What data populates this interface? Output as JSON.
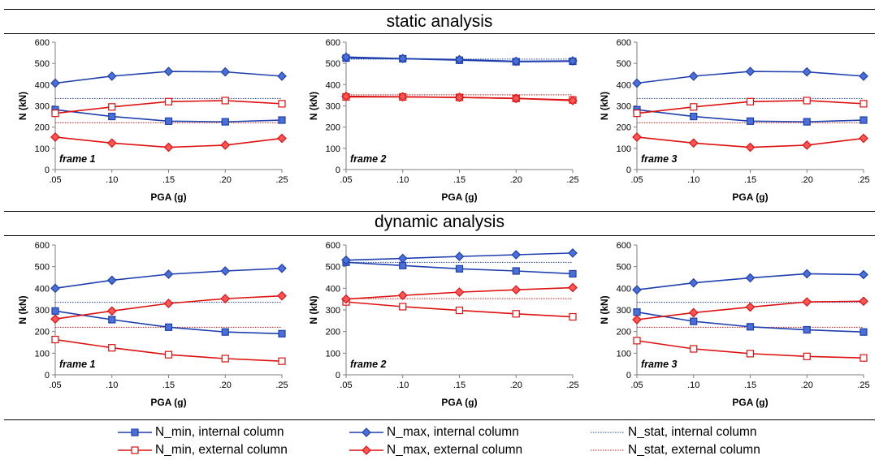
{
  "sections": [
    {
      "title": "static analysis"
    },
    {
      "title": "dynamic analysis"
    }
  ],
  "colors": {
    "internal": "#1f3fae",
    "internal_fill": "#4a70d8",
    "external": "#dd1111",
    "external_fill": "#ff5555"
  },
  "legend": [
    {
      "label": "N_min, internal column",
      "series": "N_min_internal"
    },
    {
      "label": "N_max, internal column",
      "series": "N_max_internal"
    },
    {
      "label": "N_stat, internal column",
      "series": "N_stat_internal"
    },
    {
      "label": "N_min, external column",
      "series": "N_min_external"
    },
    {
      "label": "N_max, external column",
      "series": "N_max_external"
    },
    {
      "label": "N_stat, external column",
      "series": "N_stat_external"
    }
  ],
  "chart_data": [
    {
      "type": "line",
      "section": "static analysis",
      "annotation": "frame 1",
      "xlabel": "PGA (g)",
      "ylabel": "N (kN)",
      "ylim": [
        0,
        600
      ],
      "yticks": [
        0,
        100,
        200,
        300,
        400,
        500,
        600
      ],
      "x": [
        ".05",
        ".10",
        ".15",
        ".20",
        ".25"
      ],
      "series": [
        {
          "name": "N_min, internal column",
          "key": "N_min_internal",
          "values": [
            282,
            250,
            228,
            225,
            233
          ]
        },
        {
          "name": "N_max, internal column",
          "key": "N_max_internal",
          "values": [
            407,
            440,
            462,
            460,
            440
          ]
        },
        {
          "name": "N_stat, internal column",
          "key": "N_stat_internal",
          "values": [
            335,
            335,
            335,
            335,
            335
          ]
        },
        {
          "name": "N_min, external column",
          "key": "N_min_external",
          "values": [
            265,
            295,
            320,
            325,
            310
          ]
        },
        {
          "name": "N_max, external column",
          "key": "N_max_external",
          "values": [
            153,
            125,
            105,
            115,
            147
          ]
        },
        {
          "name": "N_stat, external column",
          "key": "N_stat_external",
          "values": [
            220,
            220,
            220,
            220,
            220
          ]
        }
      ]
    },
    {
      "type": "line",
      "section": "static analysis",
      "annotation": "frame 2",
      "xlabel": "PGA (g)",
      "ylabel": "N (kN)",
      "ylim": [
        0,
        600
      ],
      "yticks": [
        0,
        100,
        200,
        300,
        400,
        500,
        600
      ],
      "x": [
        ".05",
        ".10",
        ".15",
        ".20",
        ".25"
      ],
      "series": [
        {
          "name": "N_min, internal column",
          "key": "N_min_internal",
          "values": [
            525,
            522,
            515,
            508,
            510
          ]
        },
        {
          "name": "N_max, internal column",
          "key": "N_max_internal",
          "values": [
            530,
            523,
            518,
            510,
            512
          ]
        },
        {
          "name": "N_stat, internal column",
          "key": "N_stat_internal",
          "values": [
            520,
            520,
            520,
            520,
            520
          ]
        },
        {
          "name": "N_min, external column",
          "key": "N_min_external",
          "values": [
            342,
            342,
            340,
            335,
            328
          ]
        },
        {
          "name": "N_max, external column",
          "key": "N_max_external",
          "values": [
            345,
            343,
            340,
            335,
            325
          ]
        },
        {
          "name": "N_stat, external column",
          "key": "N_stat_external",
          "values": [
            352,
            352,
            352,
            352,
            352
          ]
        }
      ]
    },
    {
      "type": "line",
      "section": "static analysis",
      "annotation": "frame 3",
      "xlabel": "PGA (g)",
      "ylabel": "N (kN)",
      "ylim": [
        0,
        600
      ],
      "yticks": [
        0,
        100,
        200,
        300,
        400,
        500,
        600
      ],
      "x": [
        ".05",
        ".10",
        ".15",
        ".20",
        ".25"
      ],
      "series": [
        {
          "name": "N_min, internal column",
          "key": "N_min_internal",
          "values": [
            282,
            250,
            228,
            225,
            233
          ]
        },
        {
          "name": "N_max, internal column",
          "key": "N_max_internal",
          "values": [
            407,
            440,
            462,
            460,
            440
          ]
        },
        {
          "name": "N_stat, internal column",
          "key": "N_stat_internal",
          "values": [
            335,
            335,
            335,
            335,
            335
          ]
        },
        {
          "name": "N_min, external column",
          "key": "N_min_external",
          "values": [
            265,
            295,
            320,
            325,
            310
          ]
        },
        {
          "name": "N_max, external column",
          "key": "N_max_external",
          "values": [
            153,
            125,
            105,
            115,
            147
          ]
        },
        {
          "name": "N_stat, external column",
          "key": "N_stat_external",
          "values": [
            220,
            220,
            220,
            220,
            220
          ]
        }
      ]
    },
    {
      "type": "line",
      "section": "dynamic analysis",
      "annotation": "frame 1",
      "xlabel": "PGA (g)",
      "ylabel": "N (kN)",
      "ylim": [
        0,
        600
      ],
      "yticks": [
        0,
        100,
        200,
        300,
        400,
        500,
        600
      ],
      "x": [
        ".05",
        ".10",
        ".15",
        ".20",
        ".25"
      ],
      "series": [
        {
          "name": "N_min, internal column",
          "key": "N_min_internal",
          "values": [
            295,
            255,
            220,
            198,
            190
          ]
        },
        {
          "name": "N_max, internal column",
          "key": "N_max_internal",
          "values": [
            400,
            437,
            465,
            480,
            492
          ]
        },
        {
          "name": "N_stat, internal column",
          "key": "N_stat_internal",
          "values": [
            335,
            335,
            335,
            335,
            335
          ]
        },
        {
          "name": "N_min, external column",
          "key": "N_min_external",
          "values": [
            163,
            125,
            93,
            75,
            63
          ]
        },
        {
          "name": "N_max, external column",
          "key": "N_max_external",
          "values": [
            258,
            295,
            330,
            352,
            365
          ]
        },
        {
          "name": "N_stat, external column",
          "key": "N_stat_external",
          "values": [
            220,
            220,
            220,
            220,
            220
          ]
        }
      ]
    },
    {
      "type": "line",
      "section": "dynamic analysis",
      "annotation": "frame 2",
      "xlabel": "PGA (g)",
      "ylabel": "N (kN)",
      "ylim": [
        0,
        600
      ],
      "yticks": [
        0,
        100,
        200,
        300,
        400,
        500,
        600
      ],
      "x": [
        ".05",
        ".10",
        ".15",
        ".20",
        ".25"
      ],
      "series": [
        {
          "name": "N_min, internal column",
          "key": "N_min_internal",
          "values": [
            520,
            505,
            490,
            480,
            467
          ]
        },
        {
          "name": "N_max, internal column",
          "key": "N_max_internal",
          "values": [
            530,
            538,
            547,
            555,
            563
          ]
        },
        {
          "name": "N_stat, internal column",
          "key": "N_stat_internal",
          "values": [
            520,
            520,
            520,
            520,
            520
          ]
        },
        {
          "name": "N_min, external column",
          "key": "N_min_external",
          "values": [
            337,
            315,
            298,
            282,
            268
          ]
        },
        {
          "name": "N_max, external column",
          "key": "N_max_external",
          "values": [
            350,
            367,
            382,
            393,
            403
          ]
        },
        {
          "name": "N_stat, external column",
          "key": "N_stat_external",
          "values": [
            352,
            352,
            352,
            352,
            352
          ]
        }
      ]
    },
    {
      "type": "line",
      "section": "dynamic analysis",
      "annotation": "frame 3",
      "xlabel": "PGA (g)",
      "ylabel": "N (kN)",
      "ylim": [
        0,
        600
      ],
      "yticks": [
        0,
        100,
        200,
        300,
        400,
        500,
        600
      ],
      "x": [
        ".05",
        ".10",
        ".15",
        ".20",
        ".25"
      ],
      "series": [
        {
          "name": "N_min, internal column",
          "key": "N_min_internal",
          "values": [
            290,
            247,
            222,
            208,
            198
          ]
        },
        {
          "name": "N_max, internal column",
          "key": "N_max_internal",
          "values": [
            393,
            425,
            448,
            467,
            463
          ]
        },
        {
          "name": "N_stat, internal column",
          "key": "N_stat_internal",
          "values": [
            335,
            335,
            335,
            335,
            335
          ]
        },
        {
          "name": "N_min, external column",
          "key": "N_min_external",
          "values": [
            158,
            120,
            98,
            85,
            78
          ]
        },
        {
          "name": "N_max, external column",
          "key": "N_max_external",
          "values": [
            255,
            287,
            313,
            337,
            340
          ]
        },
        {
          "name": "N_stat, external column",
          "key": "N_stat_external",
          "values": [
            220,
            220,
            220,
            220,
            220
          ]
        }
      ]
    }
  ]
}
